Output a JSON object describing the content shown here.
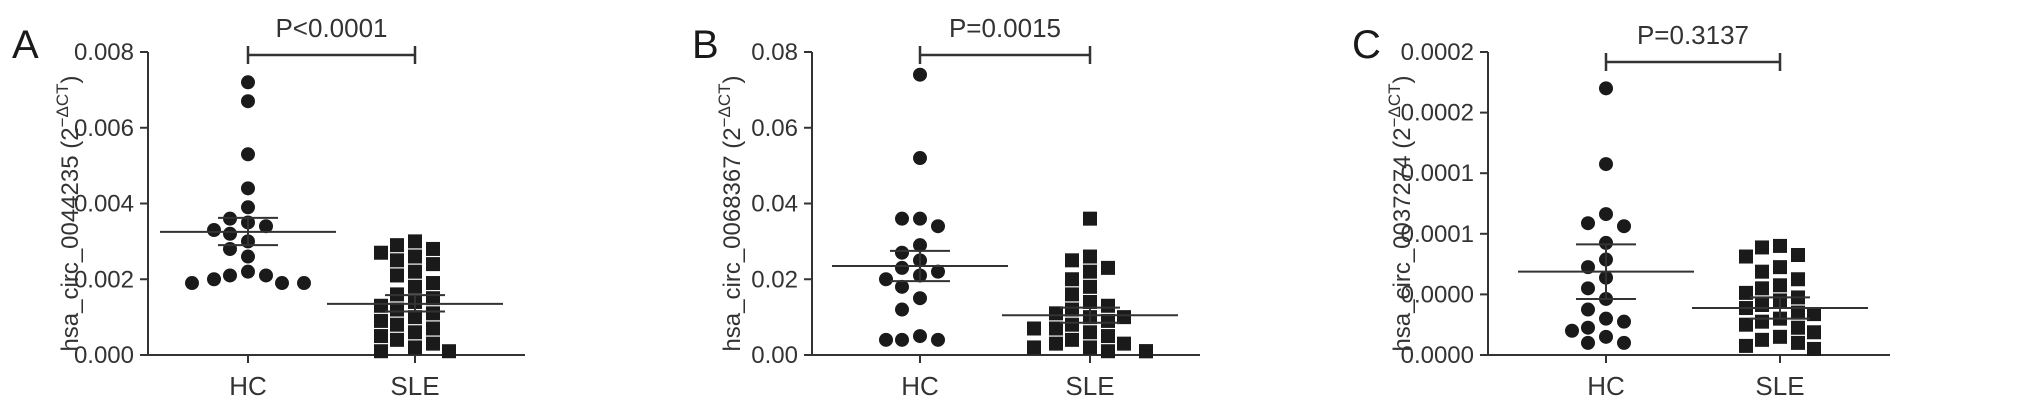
{
  "chart_data": [
    {
      "type": "scatter",
      "panel": "A",
      "ylabel": "hsa_circ_0044235 (2",
      "ylabel_sup": "−ΔCT",
      "ylabel_close": ")",
      "ylim": [
        0,
        0.008
      ],
      "yticks": [
        "0.000",
        "0.002",
        "0.004",
        "0.006",
        "0.008"
      ],
      "ytick_values": [
        0,
        0.002,
        0.004,
        0.006,
        0.008
      ],
      "categories": [
        "HC",
        "SLE"
      ],
      "p_value": "P<0.0001",
      "groups": [
        {
          "name": "HC",
          "marker": "circle",
          "mean": 0.00325,
          "sem_low": 0.0029,
          "sem_high": 0.00362,
          "values": [
            0.0072,
            0.0067,
            0.0053,
            0.0044,
            0.0039,
            0.0036,
            0.0035,
            0.0034,
            0.0033,
            0.0032,
            0.003,
            0.0028,
            0.0026,
            0.0022,
            0.0021,
            0.0021,
            0.002,
            0.0019,
            0.0019,
            0.0019
          ]
        },
        {
          "name": "SLE",
          "marker": "square",
          "mean": 0.00135,
          "sem_low": 0.00115,
          "sem_high": 0.00158,
          "values": [
            0.003,
            0.0029,
            0.0028,
            0.0027,
            0.0026,
            0.0025,
            0.0024,
            0.0022,
            0.0021,
            0.0019,
            0.0018,
            0.0016,
            0.0015,
            0.0014,
            0.0013,
            0.0012,
            0.0011,
            0.001,
            0.0009,
            0.0008,
            0.0007,
            0.0006,
            0.0005,
            0.0004,
            0.0003,
            0.0002,
            0.0001,
            0.0001
          ]
        }
      ]
    },
    {
      "type": "scatter",
      "panel": "B",
      "ylabel": "hsa_circ_0068367 (2",
      "ylabel_sup": "−ΔCT",
      "ylabel_close": ")",
      "ylim": [
        0,
        0.08
      ],
      "yticks": [
        "0.00",
        "0.02",
        "0.04",
        "0.06",
        "0.08"
      ],
      "ytick_values": [
        0,
        0.02,
        0.04,
        0.06,
        0.08
      ],
      "categories": [
        "HC",
        "SLE"
      ],
      "p_value": "P=0.0015",
      "groups": [
        {
          "name": "HC",
          "marker": "circle",
          "mean": 0.0235,
          "sem_low": 0.0195,
          "sem_high": 0.0275,
          "values": [
            0.074,
            0.052,
            0.036,
            0.036,
            0.034,
            0.029,
            0.027,
            0.025,
            0.023,
            0.022,
            0.021,
            0.02,
            0.018,
            0.015,
            0.012,
            0.005,
            0.004,
            0.004,
            0.004
          ]
        },
        {
          "name": "SLE",
          "marker": "square",
          "mean": 0.0105,
          "sem_low": 0.0085,
          "sem_high": 0.0125,
          "values": [
            0.036,
            0.026,
            0.025,
            0.023,
            0.022,
            0.02,
            0.018,
            0.016,
            0.014,
            0.013,
            0.012,
            0.011,
            0.01,
            0.01,
            0.009,
            0.008,
            0.007,
            0.007,
            0.006,
            0.005,
            0.004,
            0.003,
            0.003,
            0.002,
            0.002,
            0.001,
            0.001,
            0.001
          ]
        }
      ]
    },
    {
      "type": "scatter",
      "panel": "C",
      "ylabel": "hsa_circ_0037274 (2",
      "ylabel_sup": "−ΔCT",
      "ylabel_close": ")",
      "ylim": [
        0,
        0.0002
      ],
      "yticks": [
        "0.0000",
        "0.0000",
        "0.0001",
        "0.0001",
        "0.0002",
        "0.0002"
      ],
      "ytick_values": [
        0,
        4e-05,
        8e-05,
        0.00012,
        0.00016,
        0.0002
      ],
      "categories": [
        "HC",
        "SLE"
      ],
      "p_value": "P=0.3137",
      "groups": [
        {
          "name": "HC",
          "marker": "circle",
          "mean": 5.5e-05,
          "sem_low": 3.7e-05,
          "sem_high": 7.3e-05,
          "values": [
            0.000176,
            0.000126,
            9.3e-05,
            8.7e-05,
            8.5e-05,
            7.4e-05,
            6.3e-05,
            5.8e-05,
            5.1e-05,
            4.4e-05,
            3.7e-05,
            3e-05,
            2.4e-05,
            2.2e-05,
            1.8e-05,
            1.6e-05,
            1.2e-05,
            8e-06,
            8e-06
          ]
        },
        {
          "name": "SLE",
          "marker": "square",
          "mean": 3.1e-05,
          "sem_low": 2.4e-05,
          "sem_high": 3.8e-05,
          "values": [
            7.2e-05,
            7.1e-05,
            6.6e-05,
            6.5e-05,
            5.8e-05,
            5.5e-05,
            5e-05,
            4.6e-05,
            4.4e-05,
            4.1e-05,
            3.8e-05,
            3.6e-05,
            3.3e-05,
            3.1e-05,
            2.8e-05,
            2.7e-05,
            2.4e-05,
            2.2e-05,
            2e-05,
            1.8e-05,
            1.5e-05,
            1.2e-05,
            1e-05,
            8e-06,
            6e-06,
            4e-06
          ]
        }
      ]
    }
  ]
}
